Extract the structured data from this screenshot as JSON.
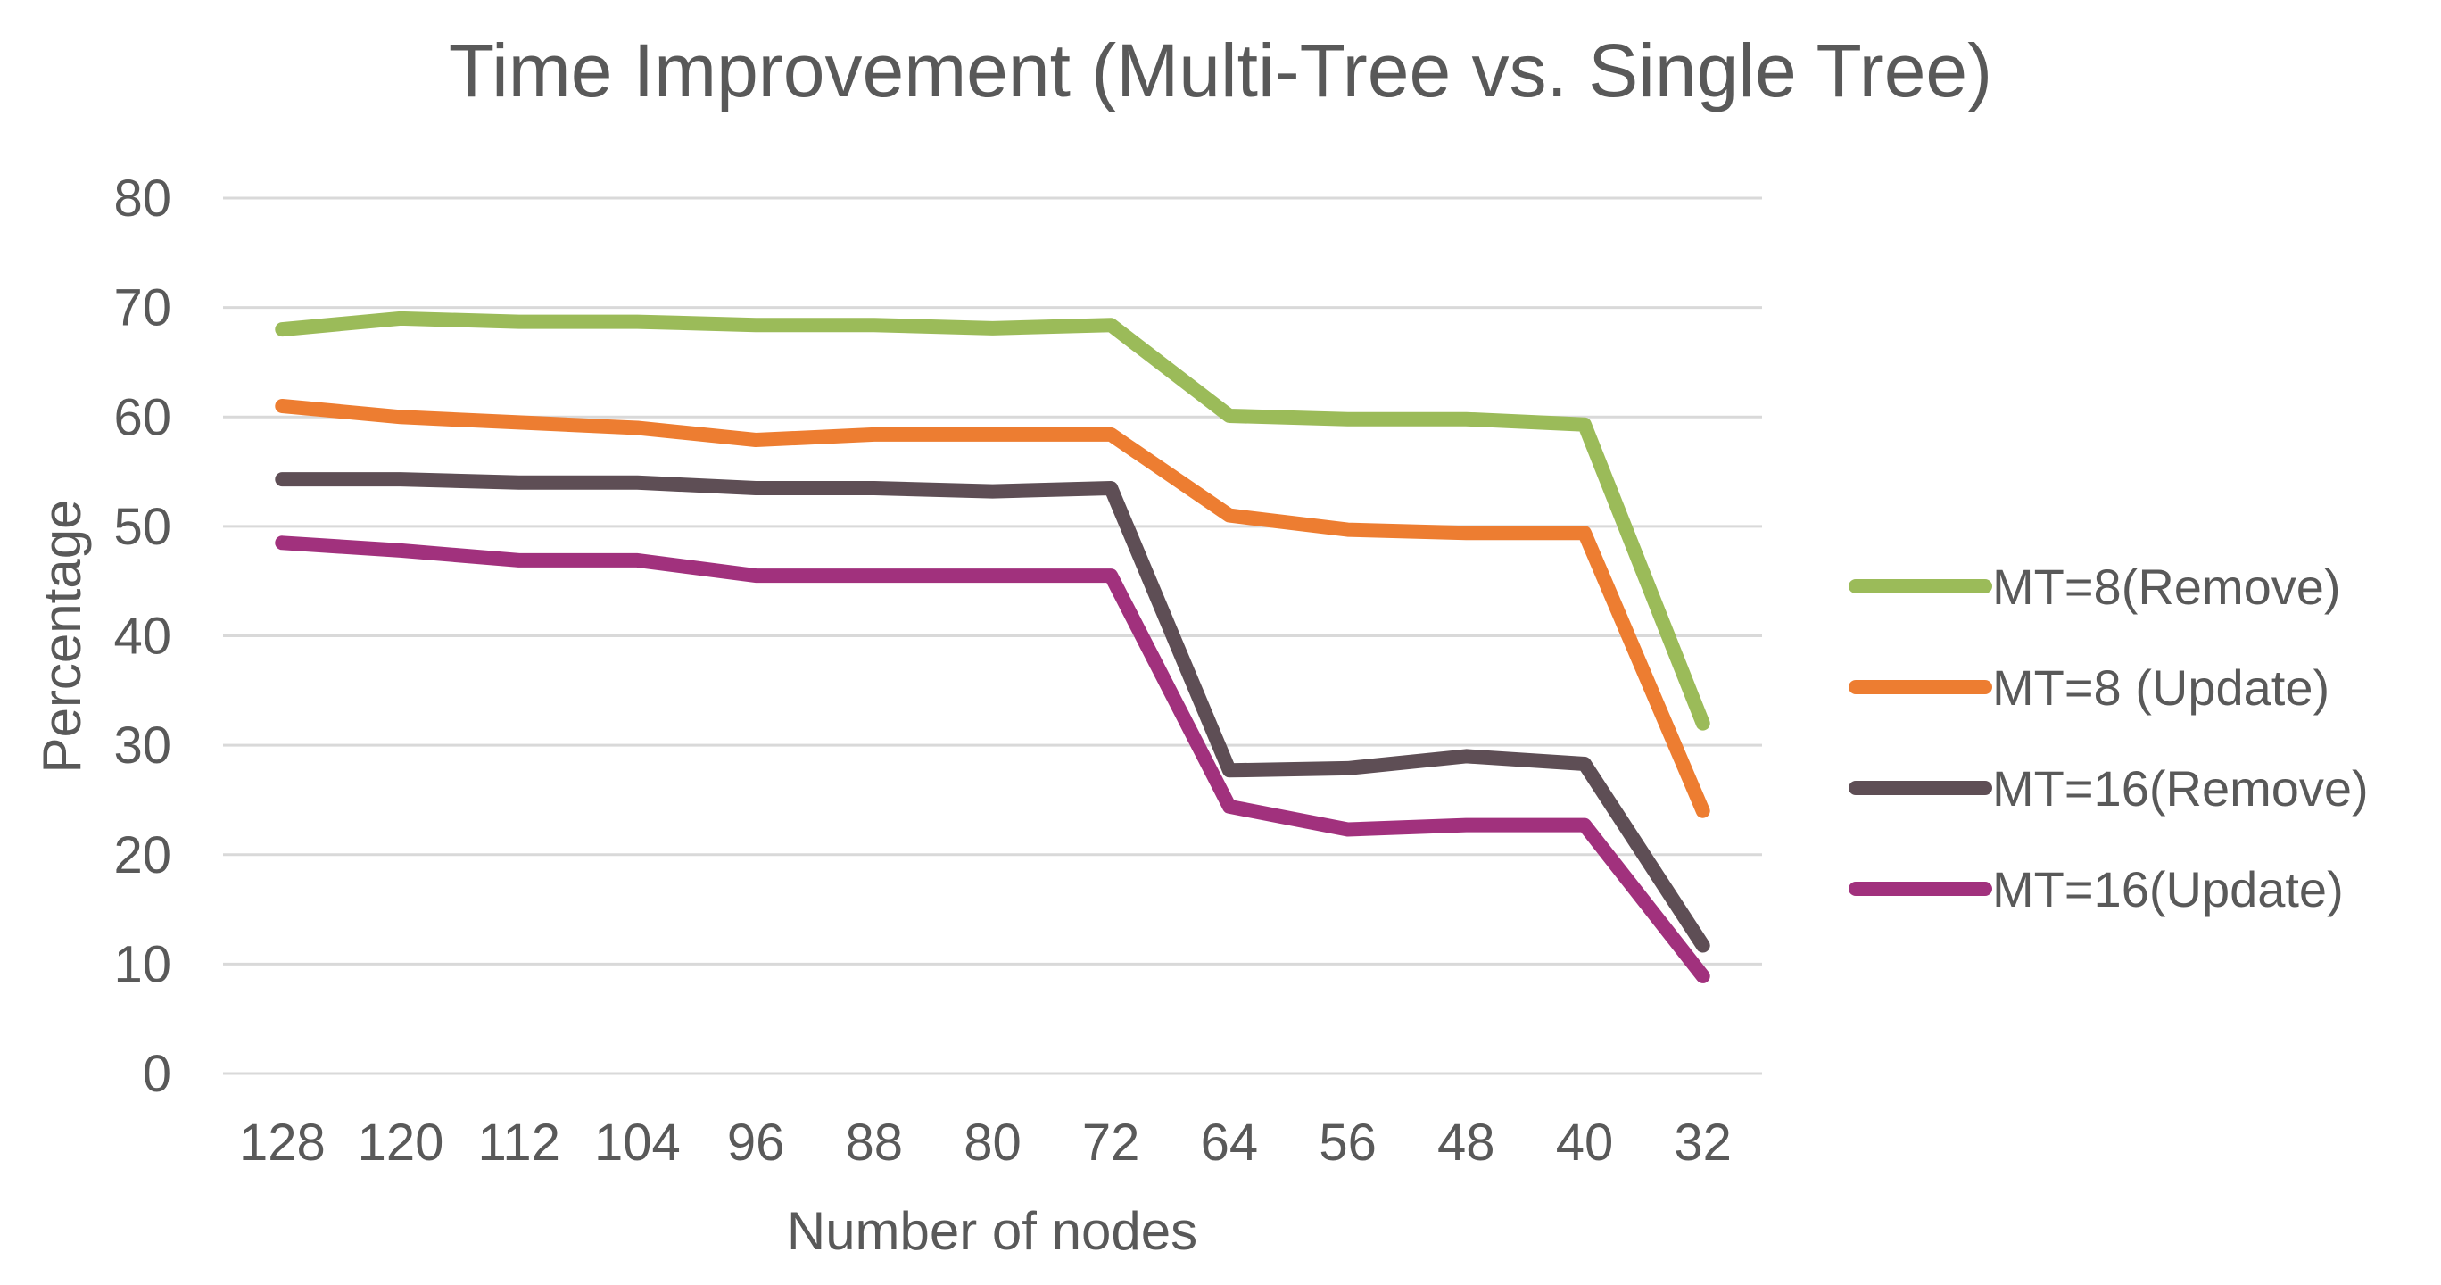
{
  "chart_data": {
    "type": "line",
    "title": "Time Improvement (Multi-Tree vs. Single Tree)",
    "xlabel": "Number of nodes",
    "ylabel": "Percentage",
    "categories": [
      "128",
      "120",
      "112",
      "104",
      "96",
      "88",
      "80",
      "72",
      "64",
      "56",
      "48",
      "40",
      "32"
    ],
    "ylim": [
      0,
      80
    ],
    "yticks": [
      0,
      10,
      20,
      30,
      40,
      50,
      60,
      70,
      80
    ],
    "grid": true,
    "legend_position": "right",
    "series": [
      {
        "name": "MT=8(Remove)",
        "color": "#9bbb59",
        "values": [
          68,
          69,
          68.7,
          68.7,
          68.4,
          68.4,
          68.1,
          68.4,
          60.1,
          59.8,
          59.8,
          59.3,
          32
        ]
      },
      {
        "name": "MT=8 (Update)",
        "color": "#ed7d31",
        "values": [
          61,
          60,
          59.5,
          59,
          57.9,
          58.4,
          58.4,
          58.4,
          51,
          49.7,
          49.4,
          49.4,
          24
        ]
      },
      {
        "name": "MT=16(Remove)",
        "color": "#5e4e55",
        "values": [
          54.3,
          54.3,
          54,
          54,
          53.5,
          53.5,
          53.2,
          53.5,
          27.7,
          27.9,
          29,
          28.3,
          11.7
        ]
      },
      {
        "name": "MT=16(Update)",
        "color": "#a1317d",
        "values": [
          48.5,
          47.8,
          46.9,
          46.9,
          45.5,
          45.5,
          45.5,
          45.5,
          24.4,
          22.3,
          22.7,
          22.7,
          8.9
        ]
      }
    ]
  }
}
